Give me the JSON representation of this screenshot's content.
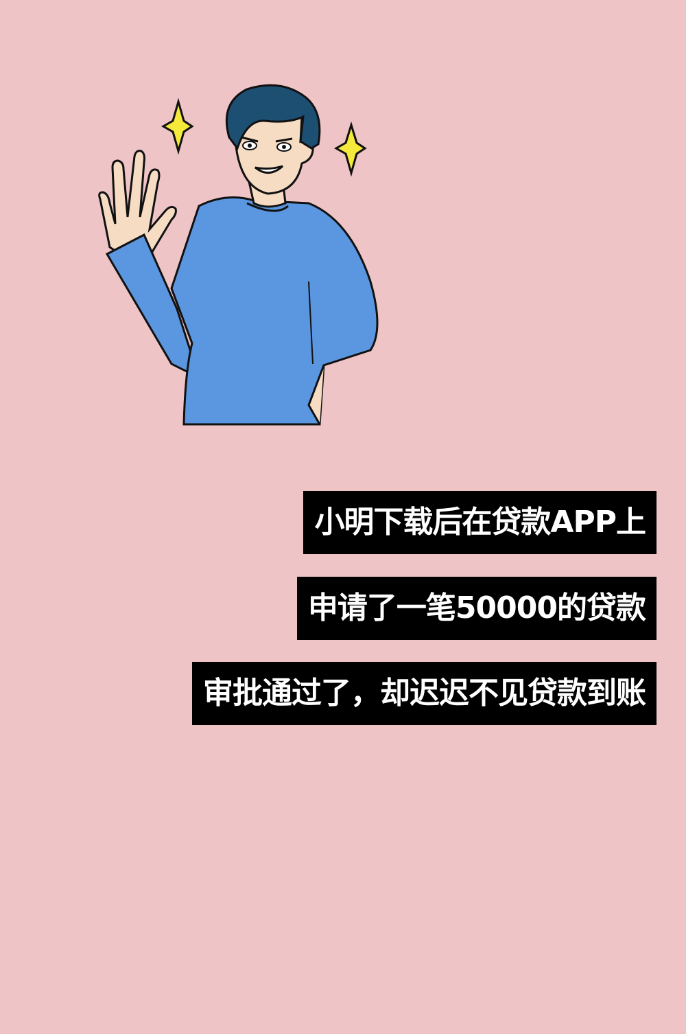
{
  "background_color": "#eec4c6",
  "illustration": {
    "subject": "waving-man-cartoon",
    "sparkle_icon": "sparkle-icon",
    "colors": {
      "shirt": "#5b96e0",
      "hair": "#1d4f73",
      "skin": "#f7dcc4",
      "sparkle": "#f5ea3b",
      "outline": "#111111"
    }
  },
  "captions": {
    "line1": "小明下载后在贷款APP上",
    "line2": "申请了一笔50000的贷款",
    "line3": "审批通过了，却迟迟不见贷款到账"
  },
  "caption_colors": {
    "box": "#000000",
    "text": "#ffffff"
  }
}
